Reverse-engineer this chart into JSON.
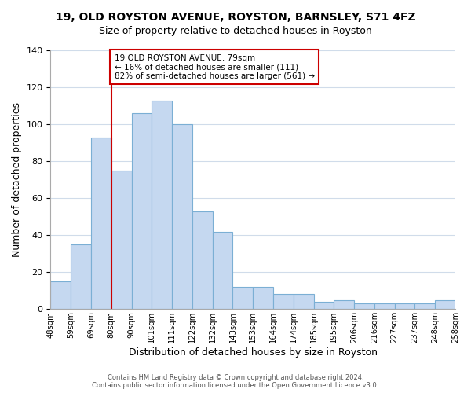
{
  "title": "19, OLD ROYSTON AVENUE, ROYSTON, BARNSLEY, S71 4FZ",
  "subtitle": "Size of property relative to detached houses in Royston",
  "xlabel": "Distribution of detached houses by size in Royston",
  "ylabel": "Number of detached properties",
  "bin_edges": [
    "48sqm",
    "59sqm",
    "69sqm",
    "80sqm",
    "90sqm",
    "101sqm",
    "111sqm",
    "122sqm",
    "132sqm",
    "143sqm",
    "153sqm",
    "164sqm",
    "174sqm",
    "185sqm",
    "195sqm",
    "206sqm",
    "216sqm",
    "227sqm",
    "237sqm",
    "248sqm",
    "258sqm"
  ],
  "bar_heights": [
    15,
    35,
    93,
    75,
    106,
    113,
    100,
    53,
    42,
    12,
    12,
    8,
    8,
    4,
    5,
    3,
    3,
    3,
    3,
    5
  ],
  "bar_color": "#c5d8f0",
  "bar_edge_color": "#7bafd4",
  "vline_x_index": 3,
  "vline_color": "#cc0000",
  "annotation_text": "19 OLD ROYSTON AVENUE: 79sqm\n← 16% of detached houses are smaller (111)\n82% of semi-detached houses are larger (561) →",
  "annotation_box_color": "#ffffff",
  "annotation_box_edge": "#cc0000",
  "ylim": [
    0,
    140
  ],
  "yticks": [
    0,
    20,
    40,
    60,
    80,
    100,
    120,
    140
  ],
  "footer_line1": "Contains HM Land Registry data © Crown copyright and database right 2024.",
  "footer_line2": "Contains public sector information licensed under the Open Government Licence v3.0.",
  "background_color": "#ffffff",
  "grid_color": "#d0dcea"
}
